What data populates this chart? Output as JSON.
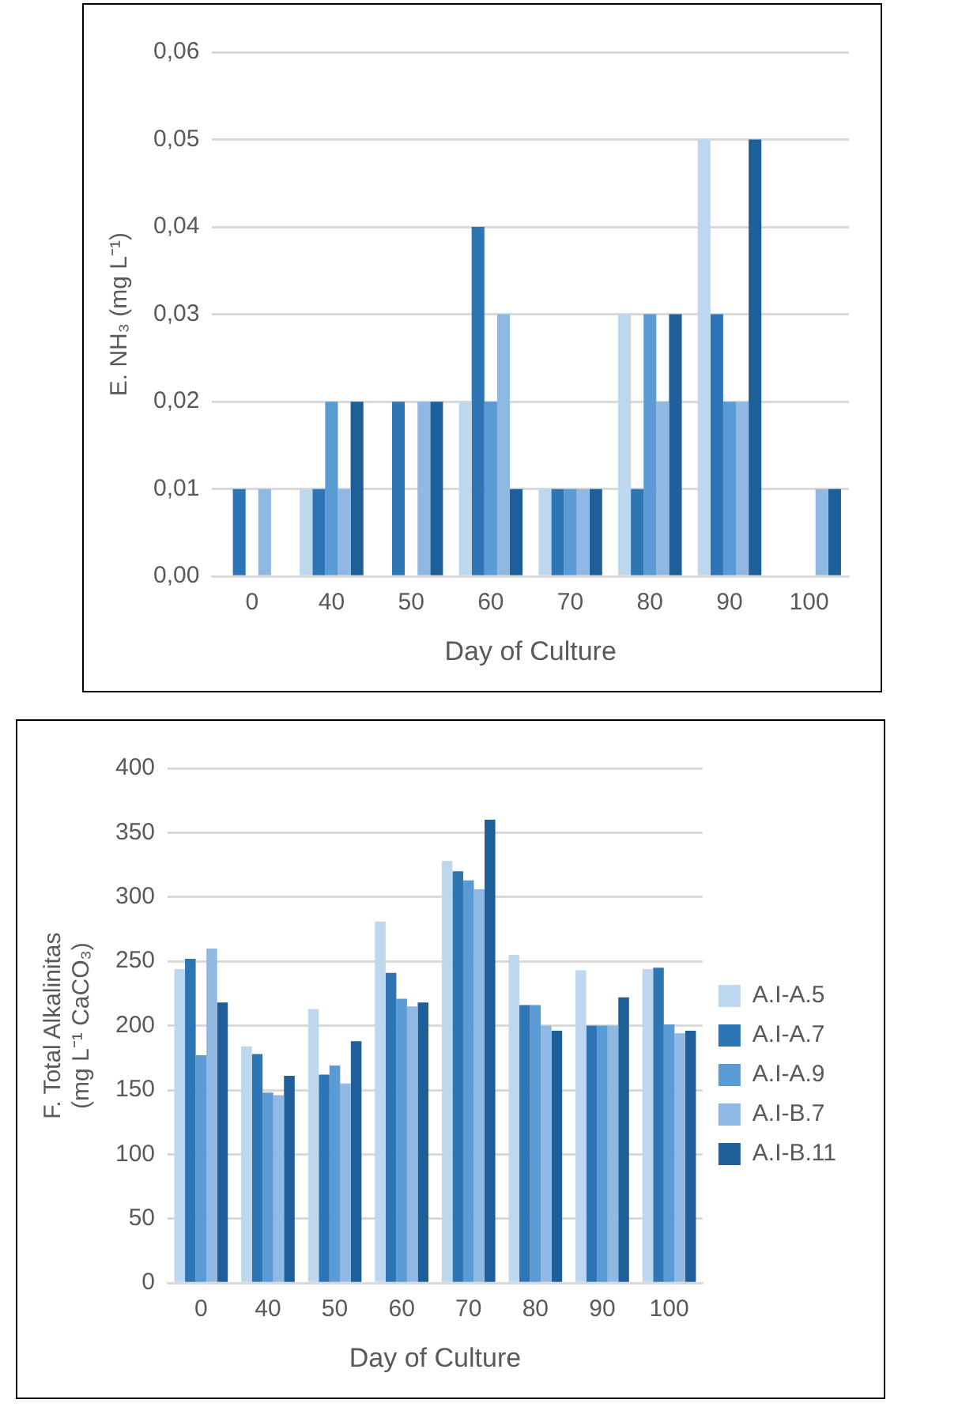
{
  "chart_data": [
    {
      "type": "bar",
      "xlabel": "Day of Culture",
      "ylabel": "E. NH₃ (mg L⁻¹)",
      "categories": [
        "0",
        "40",
        "50",
        "60",
        "70",
        "80",
        "90",
        "100"
      ],
      "series": [
        {
          "color": "#bdd7ee",
          "values": [
            0,
            0.01,
            0,
            0.02,
            0.01,
            0.03,
            0.05,
            0
          ]
        },
        {
          "color": "#2e75b6",
          "values": [
            0.01,
            0.01,
            0.02,
            0.04,
            0.01,
            0.01,
            0.03,
            0
          ]
        },
        {
          "color": "#5b9bd5",
          "values": [
            0,
            0.02,
            0,
            0.02,
            0.01,
            0.03,
            0.02,
            0
          ]
        },
        {
          "color": "#8fb9e2",
          "values": [
            0.01,
            0.01,
            0.02,
            0.03,
            0.01,
            0.02,
            0.02,
            0.01
          ]
        },
        {
          "color": "#1f5f99",
          "values": [
            0,
            0.02,
            0.02,
            0.01,
            0.01,
            0.03,
            0.05,
            0.01
          ]
        }
      ],
      "ylim": [
        0,
        0.06
      ],
      "yticks": [
        {
          "value": 0,
          "label": "0,00"
        },
        {
          "value": 0.01,
          "label": "0,01"
        },
        {
          "value": 0.02,
          "label": "0,02"
        },
        {
          "value": 0.03,
          "label": "0,03"
        },
        {
          "value": 0.04,
          "label": "0,04"
        },
        {
          "value": 0.05,
          "label": "0,05"
        },
        {
          "value": 0.06,
          "label": "0,06"
        }
      ],
      "grid": "y",
      "legend": false
    },
    {
      "type": "bar",
      "xlabel": "Day of Culture",
      "ylabel": "F. Total Alkalinitas\n(mg L⁻¹ CaCO₃)",
      "categories": [
        "0",
        "40",
        "50",
        "60",
        "70",
        "80",
        "90",
        "100"
      ],
      "series": [
        {
          "name": "A.I-A.5",
          "color": "#bdd7ee",
          "values": [
            244,
            184,
            213,
            281,
            328,
            255,
            243,
            244
          ]
        },
        {
          "name": "A.I-A.7",
          "color": "#2e75b6",
          "values": [
            252,
            178,
            162,
            241,
            320,
            216,
            200,
            245
          ]
        },
        {
          "name": "A.I-A.9",
          "color": "#5b9bd5",
          "values": [
            177,
            148,
            169,
            221,
            313,
            216,
            200,
            201
          ]
        },
        {
          "name": "A.I-B.7",
          "color": "#8fb9e2",
          "values": [
            260,
            146,
            155,
            215,
            306,
            200,
            200,
            194
          ]
        },
        {
          "name": "A.I-B.11",
          "color": "#1f5f99",
          "values": [
            218,
            161,
            188,
            218,
            360,
            196,
            222,
            196
          ]
        }
      ],
      "ylim": [
        0,
        400
      ],
      "yticks": [
        0,
        50,
        100,
        150,
        200,
        250,
        300,
        350,
        400
      ],
      "grid": "y",
      "legend": "right"
    }
  ]
}
